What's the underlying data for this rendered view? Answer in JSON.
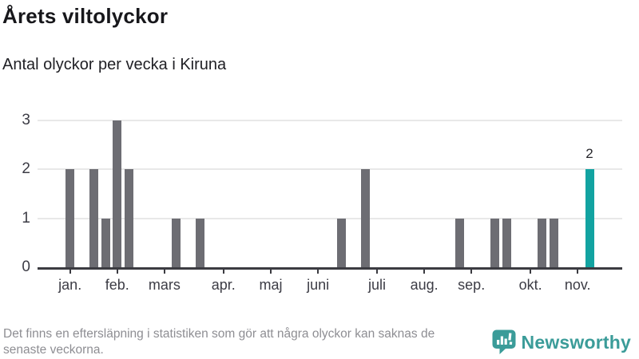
{
  "header": {
    "title": "Årets viltolyckor",
    "subtitle": "Antal olyckor per vecka i Kiruna"
  },
  "chart_data": {
    "type": "bar",
    "title": "Årets viltolyckor",
    "subtitle": "Antal olyckor per vecka i Kiruna",
    "x_unit": "vecka",
    "first_week": 1,
    "values": [
      2,
      0,
      2,
      1,
      3,
      2,
      0,
      0,
      0,
      1,
      0,
      1,
      0,
      0,
      0,
      0,
      0,
      0,
      0,
      0,
      0,
      0,
      0,
      1,
      0,
      2,
      0,
      0,
      0,
      0,
      0,
      0,
      0,
      1,
      0,
      0,
      1,
      1,
      0,
      0,
      1,
      1,
      0,
      0,
      2
    ],
    "ylim": [
      0,
      3
    ],
    "y_ticks": [
      0,
      1,
      2,
      3
    ],
    "x_ticks": [
      {
        "label": "jan.",
        "week": 1
      },
      {
        "label": "feb.",
        "week": 5
      },
      {
        "label": "mars",
        "week": 9
      },
      {
        "label": "apr.",
        "week": 14
      },
      {
        "label": "maj",
        "week": 18
      },
      {
        "label": "juni",
        "week": 22
      },
      {
        "label": "juli",
        "week": 27
      },
      {
        "label": "aug.",
        "week": 31
      },
      {
        "label": "sep.",
        "week": 35
      },
      {
        "label": "okt.",
        "week": 40
      },
      {
        "label": "nov.",
        "week": 44
      }
    ],
    "grid": true,
    "legend": false,
    "highlight_last_bar": true,
    "last_bar_label": "2",
    "colors": {
      "bar": "#6d6d73",
      "highlight_bar": "#12a3a1",
      "grid_line": "#e8e8e8",
      "axis_line": "#3b3b41",
      "tick_label": "#3c3c45",
      "data_label": "#26262b"
    }
  },
  "footer": {
    "note": "Det finns en eftersläpning i statistiken som gör att några olyckor kan saknas de\nsenaste veckorna.",
    "brand": "Newsworthy",
    "brand_color": "#3b9c99"
  }
}
